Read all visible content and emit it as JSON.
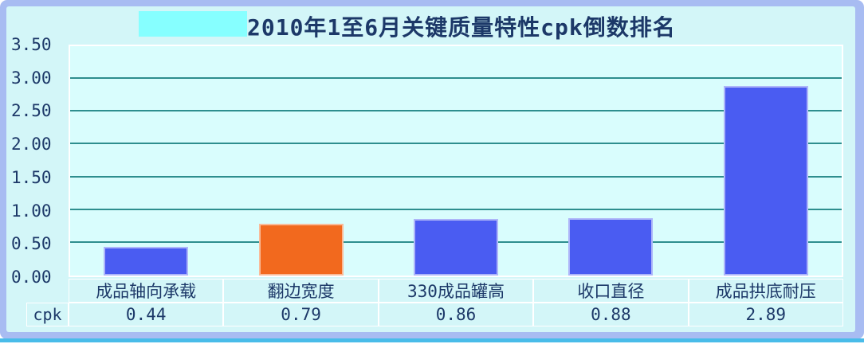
{
  "page": {
    "background": "#FFFFFF",
    "frame_color": "#A8BCF2",
    "bottom_bar_color": "#49BCE9",
    "canvas_color": "#D3F6F8",
    "text_color": "#1C3868"
  },
  "title": {
    "text": "2010年1至6月关键质量特性cpk倒数排名",
    "highlight_box_color": "#86FFFF"
  },
  "chart_data": {
    "type": "bar",
    "title": "2010年1至6月关键质量特性cpk倒数排名",
    "categories": [
      "成品轴向承载",
      "翻边宽度",
      "330成品罐高",
      "收口直径",
      "成品拱底耐压"
    ],
    "series": [
      {
        "name": "cpk",
        "values": [
          0.44,
          0.79,
          0.86,
          0.88,
          2.89
        ]
      }
    ],
    "bar_colors": [
      "#4A5CF2",
      "#F2691E",
      "#4A5CF2",
      "#4A5CF2",
      "#4A5CF2"
    ],
    "xlabel": "",
    "ylabel": "",
    "ylim": [
      0,
      3.5
    ],
    "ytick_labels": [
      "3.50",
      "3.00",
      "2.50",
      "2.00",
      "1.50",
      "1.00",
      "0.50",
      "0.00"
    ],
    "grid": true,
    "gridline_color": "#2E8E8E",
    "plot_bg": "#D9FDFD",
    "legend_position": "none"
  },
  "table": {
    "row_header": "cpk",
    "category_headers": [
      "成品轴向承载",
      "翻边宽度",
      "330成品罐高",
      "收口直径",
      "成品拱底耐压"
    ],
    "values": [
      "0.44",
      "0.79",
      "0.86",
      "0.88",
      "2.89"
    ]
  }
}
